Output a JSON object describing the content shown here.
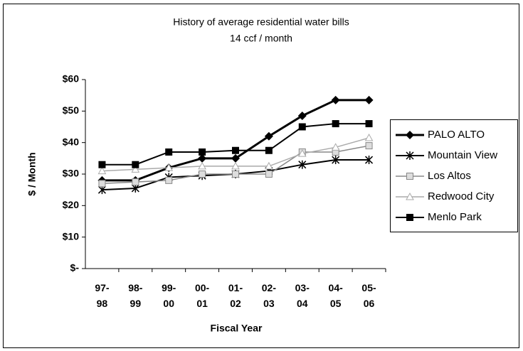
{
  "chart_data": {
    "type": "line",
    "title": "History of average residential water bills",
    "subtitle": "14 ccf / month",
    "y_label": "$ / Month",
    "x_label": "Fiscal Year",
    "categories": [
      "97-98",
      "98-99",
      "99-00",
      "00-01",
      "01-02",
      "02-03",
      "03-04",
      "04-05",
      "05-06"
    ],
    "series": [
      {
        "name": "PALO ALTO",
        "color": "#000000",
        "marker": "diamond",
        "values": [
          28,
          28,
          32,
          35,
          35,
          42,
          48.5,
          53.5,
          53.5
        ]
      },
      {
        "name": "Mountain View",
        "color": "#000000",
        "marker": "asterisk",
        "values": [
          25,
          25.5,
          29,
          29.5,
          30,
          31,
          33,
          34.5,
          34.5
        ]
      },
      {
        "name": "Los Altos",
        "color": "#888888",
        "marker": "square-open",
        "values": [
          27,
          27.5,
          28,
          30,
          30,
          30,
          37,
          37,
          39
        ]
      },
      {
        "name": "Redwood City",
        "color": "#aaaaaa",
        "marker": "triangle",
        "values": [
          31,
          31.5,
          32,
          32.5,
          32.5,
          32.5,
          36.5,
          38.5,
          41.5
        ]
      },
      {
        "name": "Menlo Park",
        "color": "#000000",
        "marker": "square",
        "values": [
          33,
          33,
          37,
          37,
          37.5,
          37.5,
          45,
          46,
          46
        ]
      }
    ],
    "ylim": [
      0,
      60
    ],
    "yticks": [
      {
        "value": 0,
        "label": "$-"
      },
      {
        "value": 10,
        "label": "$10"
      },
      {
        "value": 20,
        "label": "$20"
      },
      {
        "value": 30,
        "label": "$30"
      },
      {
        "value": 40,
        "label": "$40"
      },
      {
        "value": 50,
        "label": "$50"
      },
      {
        "value": 60,
        "label": "$60"
      }
    ],
    "grid": false,
    "legend": "right"
  }
}
